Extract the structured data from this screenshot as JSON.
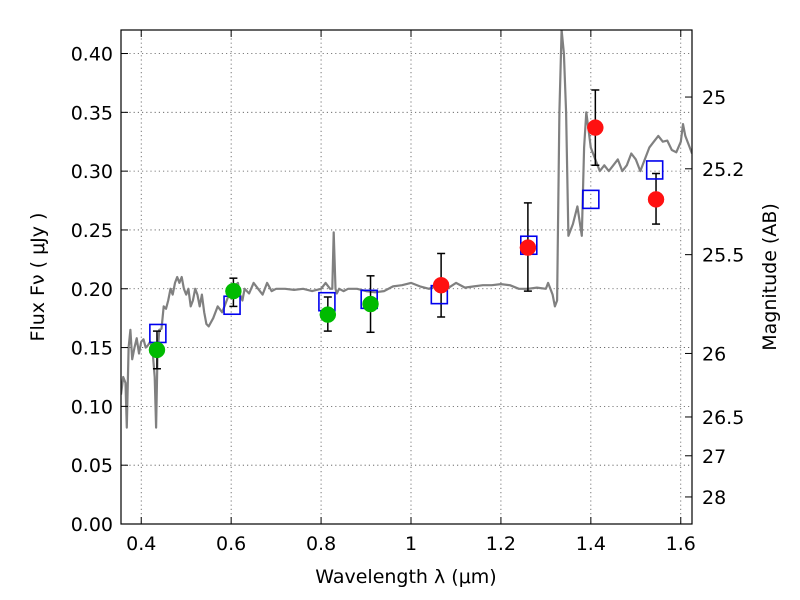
{
  "chart_data": {
    "type": "scatter",
    "xlabel": "Wavelength  λ (μm)",
    "ylabel": "Flux  Fν  ( μJy )",
    "y2label": "Magnitude (AB)",
    "xlim": [
      0.355,
      1.625
    ],
    "ylim": [
      0.0,
      0.42
    ],
    "grid": true,
    "x_ticks": [
      0.4,
      0.6,
      0.8,
      1.0,
      1.2,
      1.4,
      1.6
    ],
    "x_tick_labels": [
      "0.4",
      "0.6",
      "0.8",
      "1",
      "1.2",
      "1.4",
      "1.6"
    ],
    "y_ticks": [
      0.0,
      0.05,
      0.1,
      0.15,
      0.2,
      0.25,
      0.3,
      0.35,
      0.4
    ],
    "y_tick_labels": [
      "0.00",
      "0.05",
      "0.10",
      "0.15",
      "0.20",
      "0.25",
      "0.30",
      "0.35",
      "0.40"
    ],
    "y2_ticks": [
      {
        "label": "25",
        "flux": 0.363
      },
      {
        "label": "25.2",
        "flux": 0.302
      },
      {
        "label": "25.5",
        "flux": 0.229
      },
      {
        "label": "26",
        "flux": 0.145
      },
      {
        "label": "26.5",
        "flux": 0.091
      },
      {
        "label": "27",
        "flux": 0.058
      },
      {
        "label": "28",
        "flux": 0.023
      }
    ],
    "colors": {
      "model": "#808080",
      "green_points": "#00bb00",
      "red_points": "#ff1111",
      "squares": "#0000ee",
      "errorbars": "#000000"
    },
    "series": [
      {
        "name": "model spectrum",
        "kind": "line",
        "x": [
          0.355,
          0.36,
          0.365,
          0.368,
          0.372,
          0.376,
          0.38,
          0.385,
          0.39,
          0.395,
          0.4,
          0.405,
          0.41,
          0.415,
          0.42,
          0.425,
          0.43,
          0.433,
          0.436,
          0.44,
          0.445,
          0.45,
          0.455,
          0.46,
          0.465,
          0.47,
          0.475,
          0.48,
          0.485,
          0.49,
          0.495,
          0.5,
          0.505,
          0.51,
          0.515,
          0.52,
          0.525,
          0.53,
          0.535,
          0.54,
          0.545,
          0.55,
          0.56,
          0.57,
          0.58,
          0.59,
          0.6,
          0.61,
          0.615,
          0.62,
          0.625,
          0.63,
          0.64,
          0.65,
          0.66,
          0.67,
          0.68,
          0.69,
          0.7,
          0.72,
          0.74,
          0.76,
          0.78,
          0.8,
          0.81,
          0.82,
          0.825,
          0.828,
          0.832,
          0.835,
          0.84,
          0.85,
          0.86,
          0.88,
          0.9,
          0.92,
          0.94,
          0.96,
          0.98,
          1.0,
          1.02,
          1.04,
          1.06,
          1.08,
          1.1,
          1.12,
          1.14,
          1.16,
          1.18,
          1.2,
          1.22,
          1.24,
          1.26,
          1.28,
          1.3,
          1.305,
          1.31,
          1.315,
          1.32,
          1.325,
          1.33,
          1.335,
          1.34,
          1.345,
          1.35,
          1.36,
          1.37,
          1.38,
          1.385,
          1.39,
          1.4,
          1.41,
          1.42,
          1.43,
          1.44,
          1.45,
          1.46,
          1.47,
          1.48,
          1.49,
          1.5,
          1.51,
          1.52,
          1.53,
          1.54,
          1.55,
          1.56,
          1.57,
          1.58,
          1.59,
          1.6,
          1.605,
          1.61,
          1.62,
          1.625
        ],
        "y": [
          0.11,
          0.125,
          0.12,
          0.082,
          0.15,
          0.165,
          0.14,
          0.15,
          0.158,
          0.145,
          0.155,
          0.157,
          0.15,
          0.152,
          0.155,
          0.148,
          0.125,
          0.082,
          0.14,
          0.165,
          0.166,
          0.185,
          0.183,
          0.19,
          0.2,
          0.195,
          0.205,
          0.21,
          0.205,
          0.21,
          0.2,
          0.195,
          0.2,
          0.185,
          0.19,
          0.2,
          0.195,
          0.185,
          0.195,
          0.18,
          0.17,
          0.168,
          0.175,
          0.185,
          0.18,
          0.19,
          0.2,
          0.203,
          0.205,
          0.195,
          0.19,
          0.2,
          0.196,
          0.205,
          0.2,
          0.195,
          0.205,
          0.198,
          0.2,
          0.2,
          0.199,
          0.2,
          0.198,
          0.2,
          0.205,
          0.2,
          0.2,
          0.248,
          0.2,
          0.196,
          0.2,
          0.198,
          0.2,
          0.2,
          0.198,
          0.197,
          0.198,
          0.202,
          0.203,
          0.205,
          0.202,
          0.2,
          0.203,
          0.2,
          0.205,
          0.201,
          0.202,
          0.203,
          0.203,
          0.204,
          0.203,
          0.2,
          0.2,
          0.201,
          0.2,
          0.205,
          0.2,
          0.195,
          0.185,
          0.19,
          0.35,
          0.42,
          0.4,
          0.35,
          0.245,
          0.255,
          0.27,
          0.245,
          0.32,
          0.35,
          0.32,
          0.31,
          0.3,
          0.305,
          0.3,
          0.305,
          0.31,
          0.3,
          0.305,
          0.315,
          0.31,
          0.3,
          0.31,
          0.32,
          0.325,
          0.33,
          0.325,
          0.326,
          0.318,
          0.316,
          0.325,
          0.34,
          0.33,
          0.32,
          0.315
        ]
      },
      {
        "name": "green measurements",
        "kind": "points",
        "points": [
          {
            "x": 0.435,
            "y": 0.148,
            "err_low": 0.132,
            "err_high": 0.164
          },
          {
            "x": 0.605,
            "y": 0.198,
            "err_low": 0.185,
            "err_high": 0.209
          },
          {
            "x": 0.815,
            "y": 0.178,
            "err_low": 0.164,
            "err_high": 0.193
          },
          {
            "x": 0.91,
            "y": 0.187,
            "err_low": 0.163,
            "err_high": 0.211
          }
        ]
      },
      {
        "name": "red measurements",
        "kind": "points",
        "points": [
          {
            "x": 1.067,
            "y": 0.203,
            "err_low": 0.176,
            "err_high": 0.23
          },
          {
            "x": 1.26,
            "y": 0.235,
            "err_low": 0.198,
            "err_high": 0.273
          },
          {
            "x": 1.41,
            "y": 0.337,
            "err_low": 0.305,
            "err_high": 0.369
          },
          {
            "x": 1.545,
            "y": 0.276,
            "err_low": 0.255,
            "err_high": 0.298
          }
        ]
      },
      {
        "name": "model photometry",
        "kind": "squares",
        "points": [
          {
            "x": 0.437,
            "y": 0.162
          },
          {
            "x": 0.602,
            "y": 0.186
          },
          {
            "x": 0.813,
            "y": 0.189
          },
          {
            "x": 0.907,
            "y": 0.191
          },
          {
            "x": 1.063,
            "y": 0.195
          },
          {
            "x": 1.262,
            "y": 0.237
          },
          {
            "x": 1.4,
            "y": 0.276
          },
          {
            "x": 1.542,
            "y": 0.301
          }
        ]
      }
    ]
  }
}
